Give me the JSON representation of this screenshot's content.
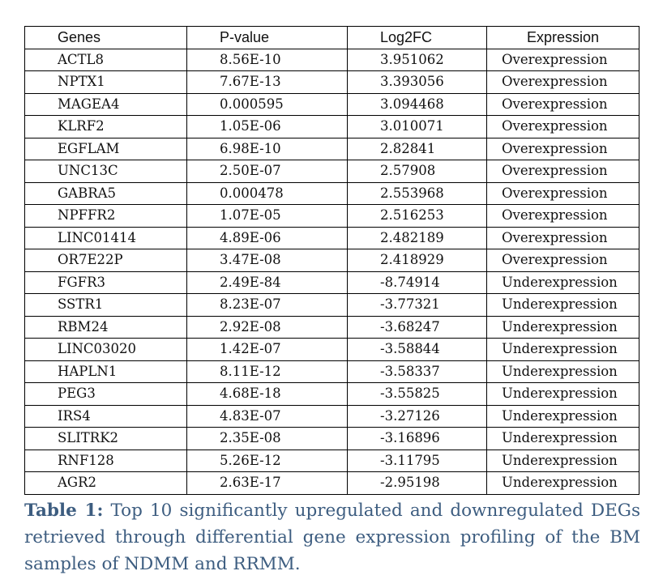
{
  "table": {
    "headers": [
      "Genes",
      "P-value",
      "Log2FC",
      "Expression"
    ],
    "rows": [
      [
        "ACTL8",
        "8.56E-10",
        "3.951062",
        "Overexpression"
      ],
      [
        "NPTX1",
        "7.67E-13",
        "3.393056",
        "Overexpression"
      ],
      [
        "MAGEA4",
        "0.000595",
        "3.094468",
        "Overexpression"
      ],
      [
        "KLRF2",
        "1.05E-06",
        "3.010071",
        "Overexpression"
      ],
      [
        "EGFLAM",
        "6.98E-10",
        "2.82841",
        "Overexpression"
      ],
      [
        "UNC13C",
        "2.50E-07",
        "2.57908",
        "Overexpression"
      ],
      [
        "GABRA5",
        "0.000478",
        "2.553968",
        "Overexpression"
      ],
      [
        "NPFFR2",
        "1.07E-05",
        "2.516253",
        "Overexpression"
      ],
      [
        "LINC01414",
        "4.89E-06",
        "2.482189",
        "Overexpression"
      ],
      [
        "OR7E22P",
        "3.47E-08",
        "2.418929",
        "Overexpression"
      ],
      [
        "FGFR3",
        "2.49E-84",
        "-8.74914",
        "Underexpression"
      ],
      [
        "SSTR1",
        "8.23E-07",
        "-3.77321",
        "Underexpression"
      ],
      [
        "RBM24",
        "2.92E-08",
        "-3.68247",
        "Underexpression"
      ],
      [
        "LINC03020",
        "1.42E-07",
        "-3.58844",
        "Underexpression"
      ],
      [
        "HAPLN1",
        "8.11E-12",
        "-3.58337",
        "Underexpression"
      ],
      [
        "PEG3",
        "4.68E-18",
        "-3.55825",
        "Underexpression"
      ],
      [
        "IRS4",
        "4.83E-07",
        "-3.27126",
        "Underexpression"
      ],
      [
        "SLITRK2",
        "2.35E-08",
        "-3.16896",
        "Underexpression"
      ],
      [
        "RNF128",
        "5.26E-12",
        "-3.11795",
        "Underexpression"
      ],
      [
        "AGR2",
        "2.63E-17",
        "-2.95198",
        "Underexpression"
      ]
    ]
  },
  "caption": {
    "label": "Table 1:",
    "text": " Top 10 significantly upregulated and downregulated DEGs retrieved through differential gene expression profiling of the BM samples of NDMM and RRMM."
  },
  "colors": {
    "caption": "#3d5d80",
    "border": "#000000"
  }
}
